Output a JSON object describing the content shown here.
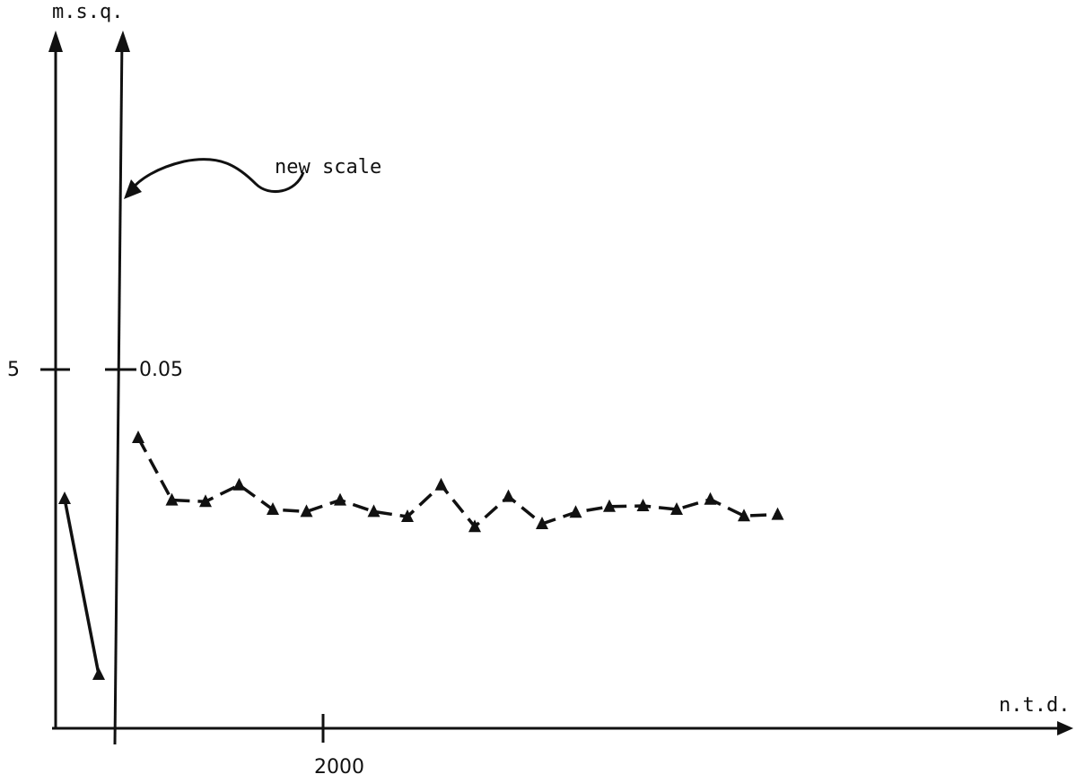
{
  "chart_data": {
    "type": "line",
    "xlabel": "n.t.d.",
    "ylabel": "m.s.q.",
    "x_ticks": [
      {
        "value": 2000,
        "label": "2000"
      }
    ],
    "y_ticks_original": [
      {
        "value": 5,
        "label": "5"
      }
    ],
    "y_ticks_new_scale": [
      {
        "value": 0.05,
        "label": "0.05"
      }
    ],
    "annotation": "new scale",
    "grid": false,
    "series": [
      {
        "scale": "original",
        "style": "solid",
        "values": [
          3.2,
          0.75
        ]
      },
      {
        "scale": "new scale",
        "style": "dashed",
        "values": [
          0.0405,
          0.0318,
          0.0316,
          0.0339,
          0.0305,
          0.0302,
          0.0318,
          0.0302,
          0.0295,
          0.0339,
          0.0281,
          0.0323,
          0.0285,
          0.0301,
          0.0309,
          0.031,
          0.0305,
          0.0319,
          0.0296,
          0.0298
        ]
      }
    ]
  }
}
